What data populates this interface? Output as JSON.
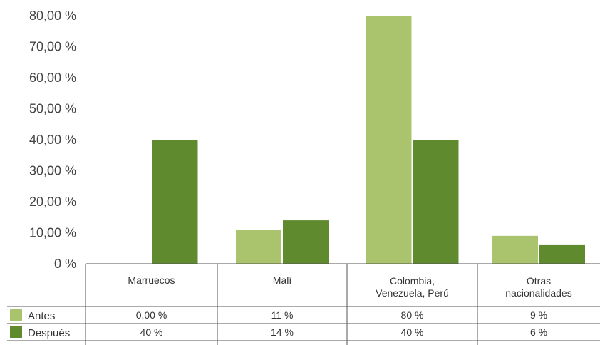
{
  "chart_data": {
    "type": "bar",
    "categories": [
      [
        "Marruecos"
      ],
      [
        "Malí"
      ],
      [
        "Colombia,",
        "Venezuela, Perú"
      ],
      [
        "Otras",
        "nacionalidades"
      ]
    ],
    "series": [
      {
        "name": "Antes",
        "values": [
          0,
          11,
          80,
          9
        ],
        "color": "#a9c46c",
        "table_labels": [
          "0,00 %",
          "11 %",
          "80 %",
          "9 %"
        ]
      },
      {
        "name": "Después",
        "values": [
          40,
          14,
          40,
          6
        ],
        "color": "#5f8b2e",
        "table_labels": [
          "40 %",
          "14 %",
          "40 %",
          "6 %"
        ]
      }
    ],
    "ylim": [
      0,
      80
    ],
    "yticks": [
      0,
      10,
      20,
      30,
      40,
      50,
      60,
      70,
      80
    ],
    "ytick_labels": [
      "0 %",
      "10,00 %",
      "20,00 %",
      "30,00 %",
      "40,00 %",
      "50,00 %",
      "60,00 %",
      "70,00 %",
      "80,00 %"
    ],
    "grid": false,
    "legend": "data-table"
  }
}
